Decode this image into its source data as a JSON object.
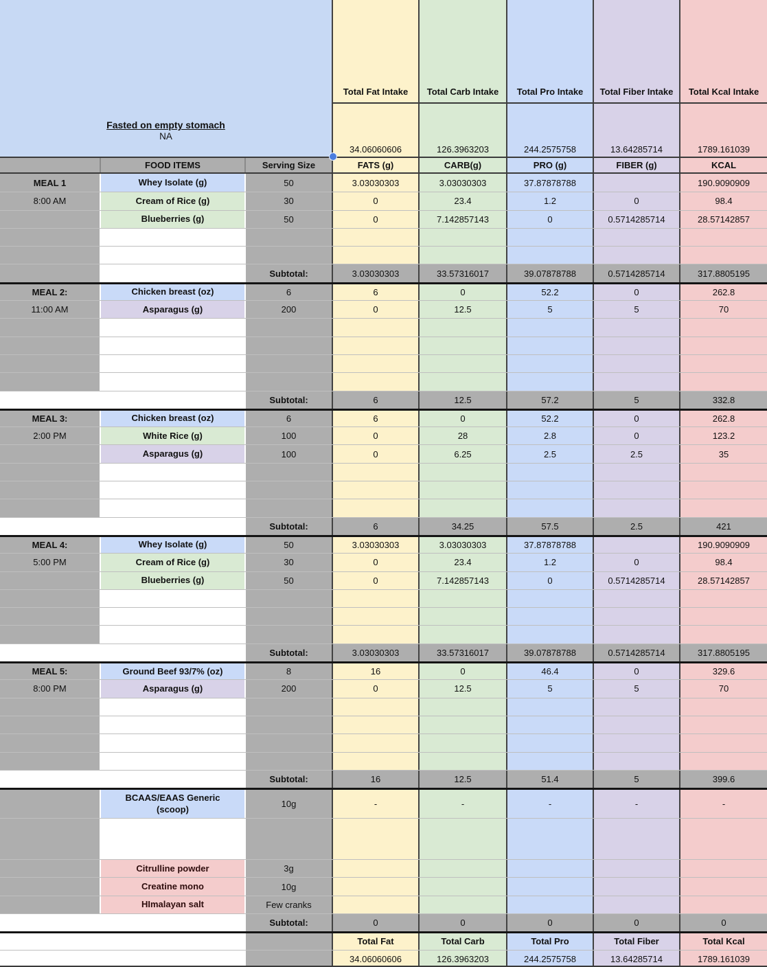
{
  "colors": {
    "yellow": "#fdf2cb",
    "green": "#d9ead3",
    "blue": "#c9daf8",
    "purple": "#d8d2e8",
    "pink": "#f4cccc",
    "gray": "#aeaeae",
    "white": "#ffffff",
    "big_blue": "#c7d9f4",
    "selection_blue": "#4a7dde",
    "supplement_text": "#2e0d0d"
  },
  "top": {
    "fasted_note": "Fasted on empty stomach",
    "fasted_value": "NA",
    "food_items_label": "FOOD ITEMS",
    "serving_size_label": "Serving Size",
    "columns": [
      {
        "title": "Total Fat Intake",
        "total": "34.06060606",
        "subheader": "FATS (g)",
        "color_key": "yellow"
      },
      {
        "title": "Total Carb Intake",
        "total": "126.3963203",
        "subheader": "CARB(g)",
        "color_key": "green"
      },
      {
        "title": "Total Pro Intake",
        "total": "244.2575758",
        "subheader": "PRO (g)",
        "color_key": "blue"
      },
      {
        "title": "Total Fiber Intake",
        "total": "13.64285714",
        "subheader": "FIBER (g)",
        "color_key": "purple"
      },
      {
        "title": "Total Kcal Intake",
        "total": "1789.161039",
        "subheader": "KCAL",
        "color_key": "pink"
      }
    ]
  },
  "rows": [
    {
      "a": "MEAL 1",
      "aBold": true,
      "b": "Whey Isolate (g)",
      "bBg": "blue",
      "c": "50",
      "v": [
        "3.03030303",
        "3.03030303",
        "37.87878788",
        "",
        "190.9090909"
      ],
      "first": true
    },
    {
      "a": "8:00 AM",
      "b": "Cream of Rice (g)",
      "bBg": "green",
      "c": "30",
      "v": [
        "0",
        "23.4",
        "1.2",
        "0",
        "98.4"
      ]
    },
    {
      "b": "Blueberries (g)",
      "bBg": "green",
      "c": "50",
      "v": [
        "0",
        "7.142857143",
        "0",
        "0.5714285714",
        "28.57142857"
      ]
    },
    {
      "v": [
        "",
        "",
        "",
        "",
        ""
      ]
    },
    {
      "v": [
        "",
        "",
        "",
        "",
        ""
      ]
    },
    {
      "c": "Subtotal:",
      "cBold": true,
      "v": [
        "3.03030303",
        "33.57316017",
        "39.07878788",
        "0.5714285714",
        "317.8805195"
      ],
      "vBg": "gray"
    },
    {
      "a": "MEAL 2:",
      "aBold": true,
      "b": "Chicken breast (oz)",
      "bBg": "blue",
      "c": "6",
      "v": [
        "6",
        "0",
        "52.2",
        "0",
        "262.8"
      ],
      "top": "thick"
    },
    {
      "a": "11:00 AM",
      "b": "Asparagus  (g)",
      "bBg": "purple",
      "c": "200",
      "v": [
        "0",
        "12.5",
        "5",
        "5",
        "70"
      ]
    },
    {
      "v": [
        "",
        "",
        "",
        "",
        ""
      ]
    },
    {
      "v": [
        "",
        "",
        "",
        "",
        ""
      ]
    },
    {
      "v": [
        "",
        "",
        "",
        "",
        ""
      ]
    },
    {
      "v": [
        "",
        "",
        "",
        "",
        ""
      ]
    },
    {
      "aBg": "white",
      "c": "Subtotal:",
      "cBold": true,
      "v": [
        "6",
        "12.5",
        "57.2",
        "5",
        "332.8"
      ],
      "vBg": "gray"
    },
    {
      "a": "MEAL 3:",
      "aBold": true,
      "b": "Chicken breast (oz)",
      "bBg": "blue",
      "c": "6",
      "v": [
        "6",
        "0",
        "52.2",
        "0",
        "262.8"
      ],
      "top": "thick"
    },
    {
      "a": "2:00 PM",
      "b": "White Rice  (g)",
      "bBg": "green",
      "c": "100",
      "v": [
        "0",
        "28",
        "2.8",
        "0",
        "123.2"
      ]
    },
    {
      "b": "Asparagus  (g)",
      "bBg": "purple",
      "c": "100",
      "v": [
        "0",
        "6.25",
        "2.5",
        "2.5",
        "35"
      ]
    },
    {
      "v": [
        "",
        "",
        "",
        "",
        ""
      ]
    },
    {
      "v": [
        "",
        "",
        "",
        "",
        ""
      ]
    },
    {
      "v": [
        "",
        "",
        "",
        "",
        ""
      ]
    },
    {
      "aBg": "white",
      "c": "Subtotal:",
      "cBold": true,
      "v": [
        "6",
        "34.25",
        "57.5",
        "2.5",
        "421"
      ],
      "vBg": "gray"
    },
    {
      "a": "MEAL 4:",
      "aBold": true,
      "b": "Whey Isolate (g)",
      "bBg": "blue",
      "c": "50",
      "v": [
        "3.03030303",
        "3.03030303",
        "37.87878788",
        "",
        "190.9090909"
      ],
      "top": "thick"
    },
    {
      "a": "5:00 PM",
      "b": "Cream of Rice (g)",
      "bBg": "green",
      "c": "30",
      "v": [
        "0",
        "23.4",
        "1.2",
        "0",
        "98.4"
      ]
    },
    {
      "b": "Blueberries (g)",
      "bBg": "green",
      "c": "50",
      "v": [
        "0",
        "7.142857143",
        "0",
        "0.5714285714",
        "28.57142857"
      ]
    },
    {
      "v": [
        "",
        "",
        "",
        "",
        ""
      ]
    },
    {
      "v": [
        "",
        "",
        "",
        "",
        ""
      ]
    },
    {
      "v": [
        "",
        "",
        "",
        "",
        ""
      ]
    },
    {
      "aBg": "white",
      "c": "Subtotal:",
      "cBold": true,
      "v": [
        "3.03030303",
        "33.57316017",
        "39.07878788",
        "0.5714285714",
        "317.8805195"
      ],
      "vBg": "gray"
    },
    {
      "a": "MEAL 5:",
      "aBold": true,
      "b": "Ground Beef 93/7% (oz)",
      "bBg": "blue",
      "c": "8",
      "v": [
        "16",
        "0",
        "46.4",
        "0",
        "329.6"
      ],
      "top": "thick"
    },
    {
      "a": "8:00 PM",
      "b": "Asparagus  (g)",
      "bBg": "purple",
      "c": "200",
      "v": [
        "0",
        "12.5",
        "5",
        "5",
        "70"
      ]
    },
    {
      "v": [
        "",
        "",
        "",
        "",
        ""
      ]
    },
    {
      "v": [
        "",
        "",
        "",
        "",
        ""
      ]
    },
    {
      "v": [
        "",
        "",
        "",
        "",
        ""
      ]
    },
    {
      "v": [
        "",
        "",
        "",
        "",
        ""
      ]
    },
    {
      "aBg": "white",
      "c": "Subtotal:",
      "cBold": true,
      "v": [
        "16",
        "12.5",
        "51.4",
        "5",
        "399.6"
      ],
      "vBg": "gray"
    },
    {
      "b": "BCAAS/EAAS Generic\n(scoop)",
      "bBg": "blue",
      "c": "10g",
      "v": [
        "-",
        "-",
        "-",
        "-",
        "-"
      ],
      "top": "thick",
      "h": 44
    },
    {
      "v": [
        "",
        "",
        "",
        "",
        ""
      ],
      "h": 60
    },
    {
      "b": "Citrulline powder",
      "bBg": "pink",
      "bColor": "supplement_text",
      "c": "3g",
      "v": [
        "",
        "",
        "",
        "",
        ""
      ]
    },
    {
      "b": "Creatine mono",
      "bBg": "pink",
      "bColor": "supplement_text",
      "c": "10g",
      "v": [
        "",
        "",
        "",
        "",
        ""
      ]
    },
    {
      "b": "HImalayan salt",
      "bBg": "pink",
      "bColor": "supplement_text",
      "c": "Few cranks",
      "v": [
        "",
        "",
        "",
        "",
        ""
      ]
    },
    {
      "aBg": "white",
      "c": "Subtotal:",
      "cBold": true,
      "v": [
        "0",
        "0",
        "0",
        "0",
        "0"
      ],
      "vBg": "gray"
    },
    {
      "aBg": "white",
      "v": [
        "Total Fat",
        "Total Carb",
        "Total Pro",
        "Total Fiber",
        "Total Kcal"
      ],
      "vBold": true,
      "top": "thick"
    },
    {
      "aBg": "white",
      "v": [
        "34.06060606",
        "126.3963203",
        "244.2575758",
        "13.64285714",
        "1789.161039"
      ]
    }
  ]
}
